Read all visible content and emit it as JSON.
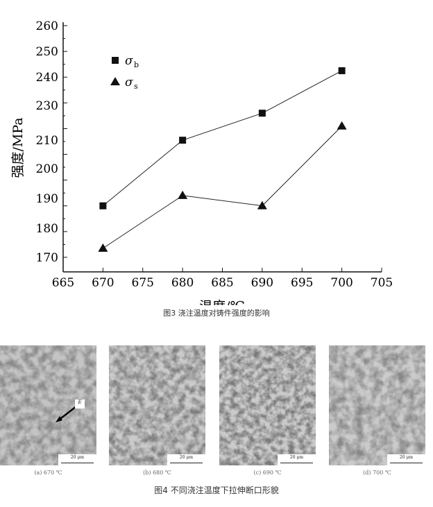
{
  "chart_data": {
    "type": "line",
    "xlabel": "温度/℃",
    "ylabel": "强度/MPa",
    "xlim": [
      665,
      705
    ],
    "ylim": [
      164.5,
      260
    ],
    "x_ticks": [
      "665",
      "670",
      "675",
      "680",
      "685",
      "690",
      "695",
      "700",
      "705"
    ],
    "y_tick_labels": [
      "260",
      "250",
      "240",
      "230",
      "210",
      "200",
      "190",
      "180",
      "170"
    ],
    "x": [
      670,
      680,
      690,
      700
    ],
    "series": [
      {
        "name": "σb",
        "marker": "square",
        "values": [
          190,
          215.5,
          226,
          242.5
        ]
      },
      {
        "name": "σs",
        "marker": "triangle",
        "values": [
          173.5,
          194,
          190,
          221
        ]
      }
    ],
    "legend": [
      {
        "symbol": "σ",
        "sub": "b"
      },
      {
        "symbol": "σ",
        "sub": "s"
      }
    ],
    "legend_position": "top-left",
    "grid": false,
    "color": "#111111"
  },
  "figure3_caption": "图3 浇注温度对铸件强度的影响",
  "figure4": {
    "caption": "图4 不同浇注温度下拉伸断口形貌",
    "panels": [
      {
        "label": "(a) 670 ℃",
        "scale": "20 μm",
        "annotation": "E"
      },
      {
        "label": "(b) 680 ℃",
        "scale": "20 μm"
      },
      {
        "label": "(c) 690 ℃",
        "scale": "20 μm"
      },
      {
        "label": "(d) 700 ℃",
        "scale": "20 μm"
      }
    ]
  }
}
